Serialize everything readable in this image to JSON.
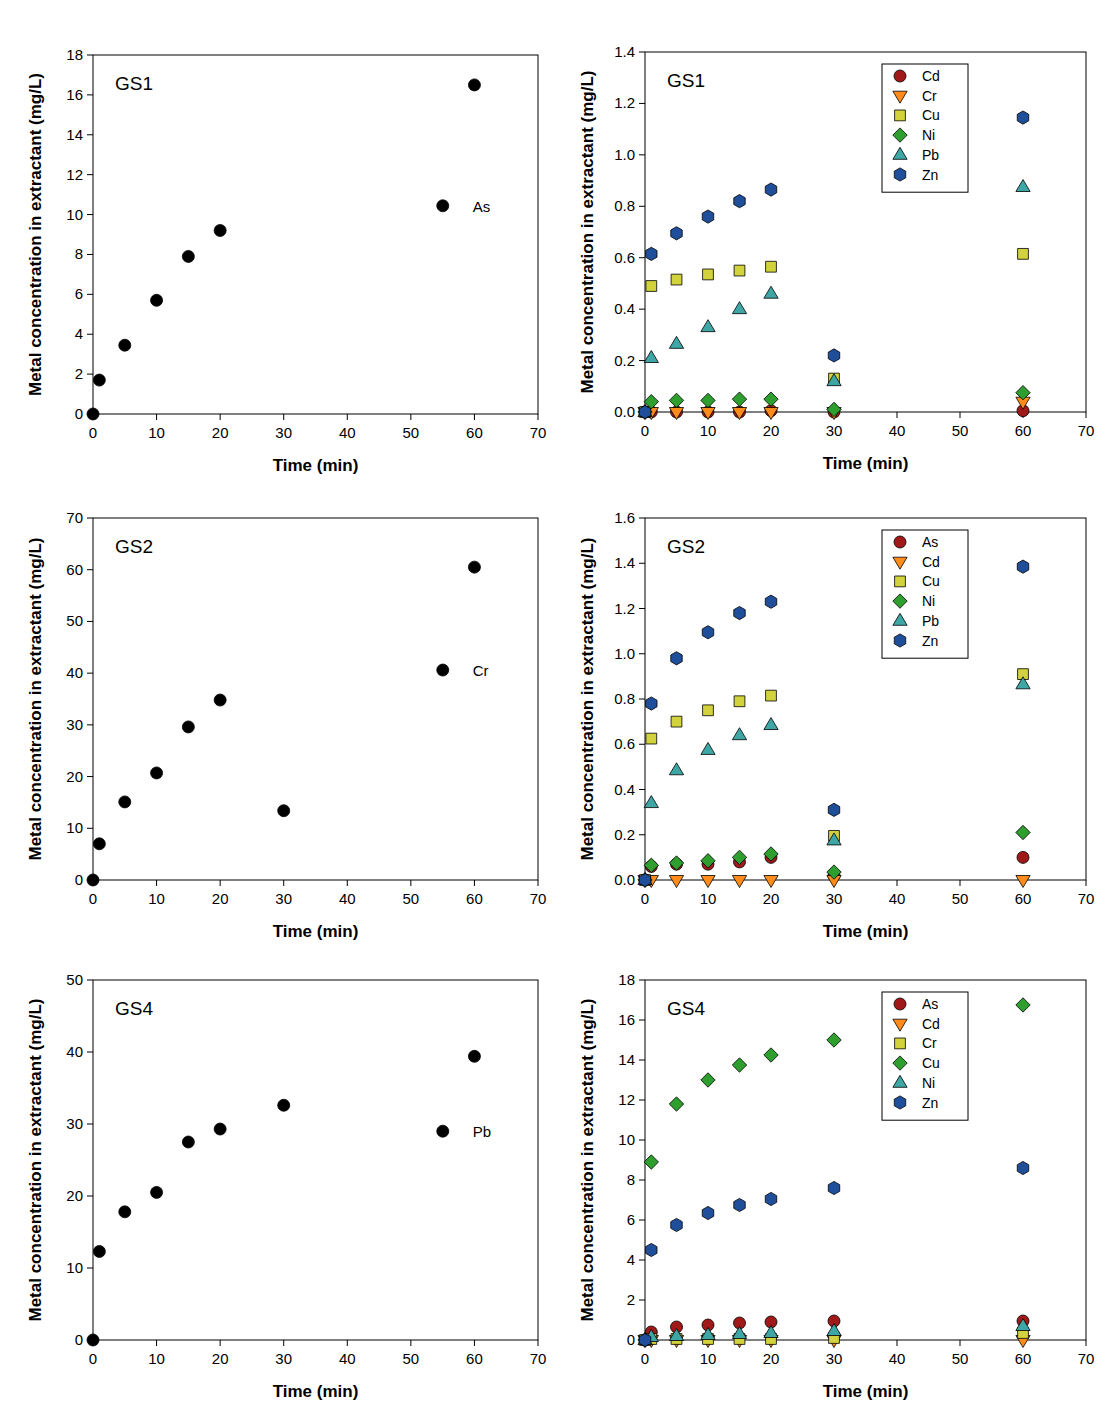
{
  "chart_data": [
    {
      "type": "scatter",
      "title": "GS1",
      "x_label": "Time (min)",
      "y_label": "Metal concentration in extractant (mg/L)",
      "x": [
        0,
        1,
        5,
        10,
        15,
        20,
        60
      ],
      "xlim": [
        0,
        70
      ],
      "xticks": [
        0,
        10,
        20,
        30,
        40,
        50,
        60,
        70
      ],
      "ylim": [
        0,
        18
      ],
      "yticks": [
        0,
        2,
        4,
        6,
        8,
        10,
        12,
        14,
        16,
        18
      ],
      "legend": "right",
      "series": [
        {
          "name": "As",
          "color": "#000000",
          "marker": "circle",
          "values": [
            0,
            1.7,
            3.45,
            5.7,
            7.9,
            9.2,
            16.5
          ]
        }
      ]
    },
    {
      "type": "scatter",
      "title": "GS1",
      "x_label": "Time (min)",
      "y_label": "Metal concentration in extractant (mg/L)",
      "x": [
        0,
        1,
        5,
        10,
        15,
        20,
        30,
        60
      ],
      "xlim": [
        0,
        70
      ],
      "xticks": [
        0,
        10,
        20,
        30,
        40,
        50,
        60,
        70
      ],
      "ylim": [
        0,
        1.4
      ],
      "yticks": [
        {
          "value": 0,
          "label": "0.0"
        },
        0.2,
        0.4,
        0.6,
        0.8,
        {
          "value": 1,
          "label": "1.0"
        },
        1.2,
        1.4
      ],
      "legend": "upper right",
      "series": [
        {
          "name": "Cd",
          "color": "#a01818",
          "marker": "circle",
          "values": [
            0,
            0,
            0,
            0,
            0,
            0.005,
            0,
            0.005
          ]
        },
        {
          "name": "Cr",
          "color": "#ff8c1a",
          "marker": "triangle-down",
          "values": [
            0,
            0,
            0,
            0,
            0,
            0,
            0,
            0.04
          ]
        },
        {
          "name": "Cu",
          "color": "#d2d23c",
          "marker": "square",
          "values": [
            0,
            0.49,
            0.515,
            0.535,
            0.55,
            0.565,
            0.13,
            0.615
          ]
        },
        {
          "name": "Ni",
          "color": "#2e9e2e",
          "marker": "diamond",
          "values": [
            0,
            0.04,
            0.045,
            0.045,
            0.05,
            0.05,
            0.01,
            0.075
          ]
        },
        {
          "name": "Pb",
          "color": "#3fa6a6",
          "marker": "triangle-up",
          "values": [
            0,
            0.21,
            0.265,
            0.33,
            0.4,
            0.46,
            0.12,
            0.875
          ]
        },
        {
          "name": "Zn",
          "color": "#1f4f9a",
          "marker": "hexagon",
          "values": [
            0,
            0.615,
            0.695,
            0.76,
            0.82,
            0.865,
            0.22,
            1.145
          ]
        }
      ]
    },
    {
      "type": "scatter",
      "title": "GS2",
      "x_label": "Time (min)",
      "y_label": "Metal concentration in extractant (mg/L)",
      "x": [
        0,
        1,
        5,
        10,
        15,
        20,
        30,
        60
      ],
      "xlim": [
        0,
        70
      ],
      "xticks": [
        0,
        10,
        20,
        30,
        40,
        50,
        60,
        70
      ],
      "ylim": [
        0,
        70
      ],
      "yticks": [
        0,
        10,
        20,
        30,
        40,
        50,
        60,
        70
      ],
      "legend": "right",
      "series": [
        {
          "name": "Cr",
          "color": "#000000",
          "marker": "circle",
          "values": [
            0,
            7,
            15.1,
            20.7,
            29.6,
            34.8,
            13.4,
            60.5
          ]
        }
      ]
    },
    {
      "type": "scatter",
      "title": "GS2",
      "x_label": "Time (min)",
      "y_label": "Metal concentration in extractant (mg/L)",
      "x": [
        0,
        1,
        5,
        10,
        15,
        20,
        30,
        60
      ],
      "xlim": [
        0,
        70
      ],
      "xticks": [
        0,
        10,
        20,
        30,
        40,
        50,
        60,
        70
      ],
      "ylim": [
        0,
        1.6
      ],
      "yticks": [
        {
          "value": 0,
          "label": "0.0"
        },
        0.2,
        0.4,
        0.6,
        0.8,
        {
          "value": 1,
          "label": "1.0"
        },
        1.2,
        1.4,
        1.6
      ],
      "legend": "upper right",
      "series": [
        {
          "name": "As",
          "color": "#a01818",
          "marker": "circle",
          "values": [
            0,
            0.06,
            0.07,
            0.07,
            0.08,
            0.1,
            0.02,
            0.1
          ]
        },
        {
          "name": "Cd",
          "color": "#ff8c1a",
          "marker": "triangle-down",
          "values": [
            0,
            0,
            0,
            0,
            0,
            0,
            0,
            0
          ]
        },
        {
          "name": "Cu",
          "color": "#d2d23c",
          "marker": "square",
          "values": [
            0,
            0.625,
            0.7,
            0.75,
            0.79,
            0.815,
            0.195,
            0.91
          ]
        },
        {
          "name": "Ni",
          "color": "#2e9e2e",
          "marker": "diamond",
          "values": [
            0,
            0.065,
            0.075,
            0.085,
            0.1,
            0.115,
            0.035,
            0.21
          ]
        },
        {
          "name": "Pb",
          "color": "#3fa6a6",
          "marker": "triangle-up",
          "values": [
            0,
            0.34,
            0.485,
            0.575,
            0.64,
            0.685,
            0.175,
            0.865
          ]
        },
        {
          "name": "Zn",
          "color": "#1f4f9a",
          "marker": "hexagon",
          "values": [
            0,
            0.78,
            0.98,
            1.095,
            1.18,
            1.23,
            0.31,
            1.385
          ]
        }
      ]
    },
    {
      "type": "scatter",
      "title": "GS4",
      "x_label": "Time (min)",
      "y_label": "Metal concentration in extractant (mg/L)",
      "x": [
        0,
        1,
        5,
        10,
        15,
        20,
        30,
        60
      ],
      "xlim": [
        0,
        70
      ],
      "xticks": [
        0,
        10,
        20,
        30,
        40,
        50,
        60,
        70
      ],
      "ylim": [
        0,
        50
      ],
      "yticks": [
        0,
        10,
        20,
        30,
        40,
        50
      ],
      "legend": "right",
      "series": [
        {
          "name": "Pb",
          "color": "#000000",
          "marker": "circle",
          "values": [
            0,
            12.3,
            17.8,
            20.5,
            27.5,
            29.3,
            32.6,
            39.4
          ]
        }
      ]
    },
    {
      "type": "scatter",
      "title": "GS4",
      "x_label": "Time (min)",
      "y_label": "Metal concentration in extractant (mg/L)",
      "x": [
        0,
        1,
        5,
        10,
        15,
        20,
        30,
        60
      ],
      "xlim": [
        0,
        70
      ],
      "xticks": [
        0,
        10,
        20,
        30,
        40,
        50,
        60,
        70
      ],
      "ylim": [
        0,
        18
      ],
      "yticks": [
        0,
        2,
        4,
        6,
        8,
        10,
        12,
        14,
        16,
        18
      ],
      "legend": "upper right",
      "series": [
        {
          "name": "As",
          "color": "#a01818",
          "marker": "circle",
          "values": [
            0,
            0.4,
            0.65,
            0.75,
            0.85,
            0.9,
            0.95,
            0.95
          ]
        },
        {
          "name": "Cd",
          "color": "#ff8c1a",
          "marker": "triangle-down",
          "values": [
            0,
            0,
            0,
            0,
            0,
            0,
            0,
            0
          ]
        },
        {
          "name": "Cr",
          "color": "#d2d23c",
          "marker": "square",
          "values": [
            0,
            0.05,
            0.05,
            0.05,
            0.05,
            0.05,
            0.1,
            0.35
          ]
        },
        {
          "name": "Cu",
          "color": "#2e9e2e",
          "marker": "diamond",
          "values": [
            0,
            8.9,
            11.8,
            13.0,
            13.75,
            14.25,
            15.0,
            16.75
          ]
        },
        {
          "name": "Ni",
          "color": "#3fa6a6",
          "marker": "triangle-up",
          "values": [
            0,
            0.15,
            0.2,
            0.25,
            0.3,
            0.35,
            0.45,
            0.7
          ]
        },
        {
          "name": "Zn",
          "color": "#1f4f9a",
          "marker": "hexagon",
          "values": [
            0,
            4.5,
            5.75,
            6.35,
            6.75,
            7.05,
            7.6,
            8.6
          ]
        }
      ]
    }
  ]
}
